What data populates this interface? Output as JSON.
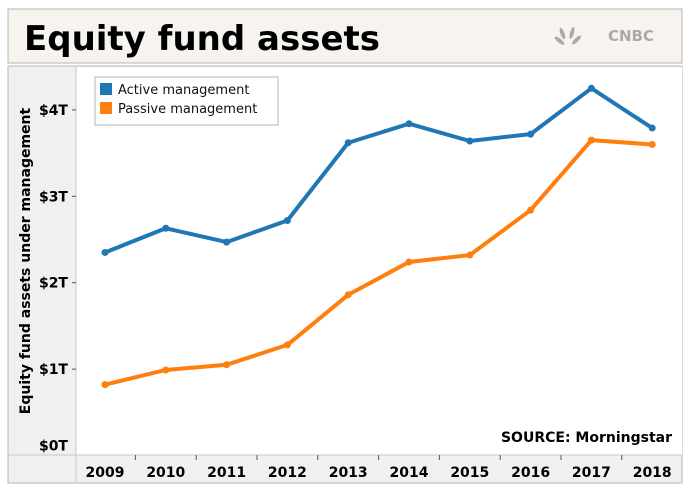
{
  "header": {
    "title": "Equity fund assets",
    "logo": "CNBC"
  },
  "chart_data": {
    "type": "line",
    "title": "Equity fund assets",
    "ylabel": "Equity fund assets under management",
    "xlabel": "",
    "categories": [
      "2009",
      "2010",
      "2011",
      "2012",
      "2013",
      "2014",
      "2015",
      "2016",
      "2017",
      "2018"
    ],
    "yticks": [
      0,
      1,
      2,
      3,
      4
    ],
    "ytick_labels": [
      "$0T",
      "$1T",
      "$2T",
      "$3T",
      "$4T"
    ],
    "ylim": [
      0,
      4.6
    ],
    "grid": false,
    "legend_placement": "top-left",
    "series": [
      {
        "name": "Active management",
        "color": "#1f77b4",
        "values": [
          2.35,
          2.63,
          2.47,
          2.72,
          3.62,
          3.84,
          3.64,
          3.72,
          4.25,
          3.79
        ]
      },
      {
        "name": "Passive management",
        "color": "#ff7f0e",
        "values": [
          0.82,
          0.99,
          1.05,
          1.28,
          1.86,
          2.24,
          2.32,
          2.84,
          3.65,
          3.6
        ]
      }
    ],
    "annotation": "SOURCE: Morningstar"
  }
}
